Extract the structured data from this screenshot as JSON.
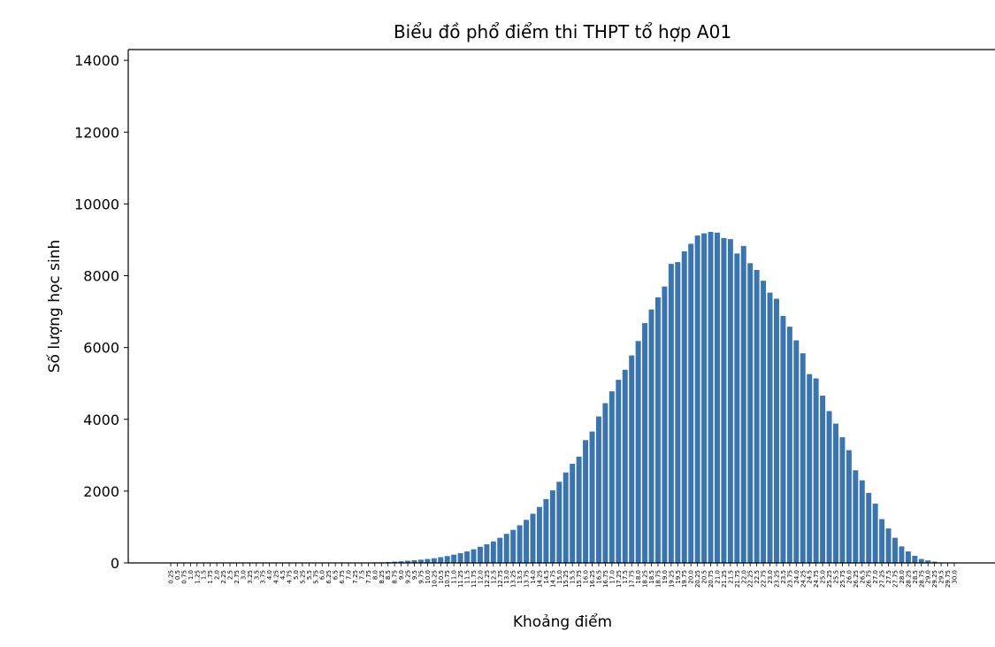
{
  "chart_data": {
    "type": "bar",
    "title": "Biểu đồ phổ điểm thi THPT tổ hợp A01",
    "xlabel": "Khoảng điểm",
    "ylabel": "Số lượng học sinh",
    "ylim": [
      0,
      14300
    ],
    "yticks": [
      0,
      2000,
      4000,
      6000,
      8000,
      10000,
      12000,
      14000
    ],
    "grid": false,
    "legend": "none",
    "bar_color": "#3a75af",
    "categories": [
      "0.25",
      "0.5",
      "0.75",
      "1.0",
      "1.25",
      "1.5",
      "1.75",
      "2.0",
      "2.25",
      "2.5",
      "2.75",
      "3.0",
      "3.25",
      "3.5",
      "3.75",
      "4.0",
      "4.25",
      "4.5",
      "4.75",
      "5.0",
      "5.25",
      "5.5",
      "5.75",
      "6.0",
      "6.25",
      "6.5",
      "6.75",
      "7.0",
      "7.25",
      "7.5",
      "7.75",
      "8.0",
      "8.25",
      "8.5",
      "8.75",
      "9.0",
      "9.25",
      "9.5",
      "9.75",
      "10.0",
      "10.25",
      "10.5",
      "10.75",
      "11.0",
      "11.25",
      "11.5",
      "11.75",
      "12.0",
      "12.25",
      "12.5",
      "12.75",
      "13.0",
      "13.25",
      "13.5",
      "13.75",
      "14.0",
      "14.25",
      "14.5",
      "14.75",
      "15.0",
      "15.25",
      "15.5",
      "15.75",
      "16.0",
      "16.25",
      "16.5",
      "16.75",
      "17.0",
      "17.25",
      "17.5",
      "17.75",
      "18.0",
      "18.25",
      "18.5",
      "18.75",
      "19.0",
      "19.25",
      "19.5",
      "19.75",
      "20.0",
      "20.25",
      "20.5",
      "20.75",
      "21.0",
      "21.25",
      "21.5",
      "21.75",
      "22.0",
      "22.25",
      "22.5",
      "22.75",
      "23.0",
      "23.25",
      "23.5",
      "23.75",
      "24.0",
      "24.25",
      "24.5",
      "24.75",
      "25.0",
      "25.25",
      "25.5",
      "25.75",
      "26.0",
      "26.25",
      "26.5",
      "26.75",
      "27.0",
      "27.25",
      "27.5",
      "27.75",
      "28.0",
      "28.25",
      "28.5",
      "28.75",
      "29.0",
      "29.25",
      "29.5",
      "29.75",
      "30.0"
    ],
    "values": [
      0,
      0,
      0,
      0,
      0,
      0,
      0,
      0,
      0,
      0,
      0,
      0,
      0,
      0,
      0,
      0,
      0,
      0,
      0,
      0,
      1,
      1,
      2,
      2,
      3,
      4,
      5,
      6,
      8,
      10,
      12,
      15,
      18,
      25,
      35,
      45,
      60,
      75,
      90,
      110,
      130,
      160,
      190,
      230,
      270,
      320,
      380,
      450,
      520,
      600,
      700,
      810,
      920,
      1050,
      1200,
      1370,
      1560,
      1780,
      2020,
      2260,
      2520,
      2760,
      2960,
      3420,
      3660,
      4080,
      4450,
      4780,
      5100,
      5380,
      5780,
      6180,
      6680,
      7060,
      7400,
      7700,
      8330,
      8380,
      8680,
      8890,
      9120,
      9180,
      9220,
      9200,
      9050,
      9020,
      8620,
      8830,
      8350,
      8160,
      7860,
      7530,
      7360,
      6880,
      6580,
      6200,
      5840,
      5260,
      5140,
      4660,
      4230,
      3880,
      3500,
      3140,
      2580,
      2300,
      1950,
      1650,
      1220,
      960,
      700,
      460,
      320,
      200,
      110,
      70,
      35,
      15,
      6,
      3
    ]
  }
}
